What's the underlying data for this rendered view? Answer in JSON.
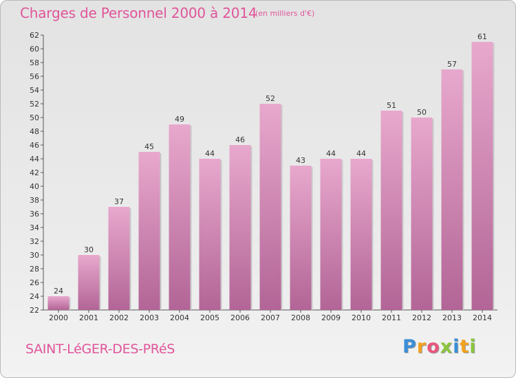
{
  "title": "Charges de Personnel 2000 à 2014",
  "unit": "(en milliers d'€)",
  "commune": "SAINT-LéGER-DES-PRéS",
  "logo": {
    "letters": [
      {
        "char": "P",
        "color": "#3a8fd8"
      },
      {
        "char": "r",
        "color": "#f2a21e"
      },
      {
        "char": "o",
        "color": "#e8567c"
      },
      {
        "char": "x",
        "color": "#8bc53f"
      },
      {
        "char": "i",
        "color": "#3a8fd8"
      },
      {
        "char": "t",
        "color": "#f2a21e"
      },
      {
        "char": "i",
        "color": "#8bc53f"
      }
    ]
  },
  "colors": {
    "accent": "#e0559a",
    "bar_light": "#e8a8cd",
    "bar_dark": "#b26596"
  },
  "chart_data": {
    "type": "bar",
    "categories": [
      "2000",
      "2001",
      "2002",
      "2003",
      "2004",
      "2005",
      "2006",
      "2007",
      "2008",
      "2009",
      "2010",
      "2011",
      "2012",
      "2013",
      "2014"
    ],
    "values": [
      24,
      30,
      37,
      45,
      49,
      44,
      46,
      52,
      43,
      44,
      44,
      51,
      50,
      57,
      61
    ],
    "title": "Charges de Personnel 2000 à 2014",
    "xlabel": "",
    "ylabel": "",
    "ylim": [
      22,
      62
    ],
    "yticks": [
      22,
      24,
      26,
      28,
      30,
      32,
      34,
      36,
      38,
      40,
      42,
      44,
      46,
      48,
      50,
      52,
      54,
      56,
      58,
      60,
      62
    ],
    "grid": false,
    "legend": "none"
  }
}
